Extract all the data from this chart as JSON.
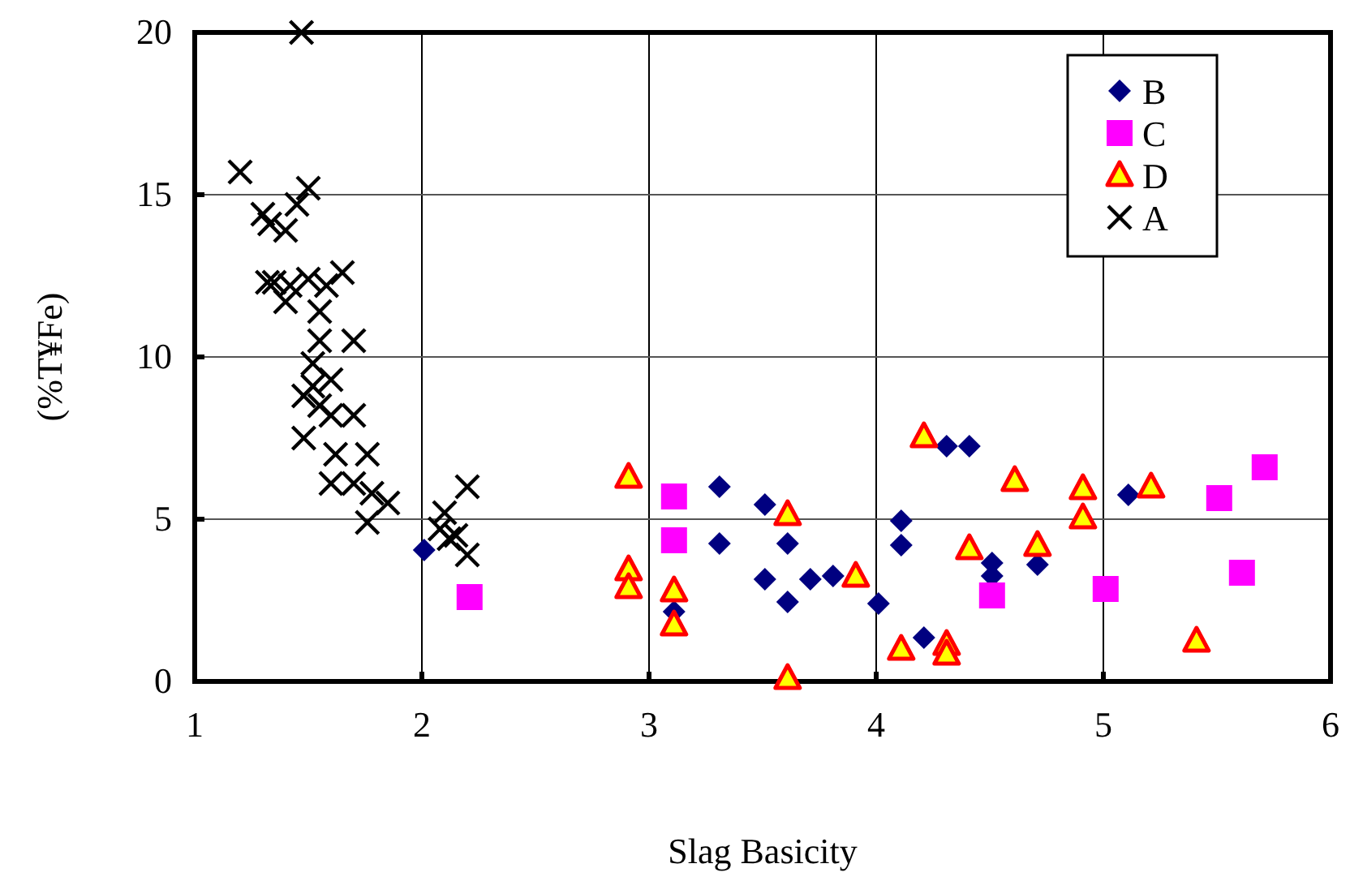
{
  "chart_data": {
    "type": "scatter",
    "xlabel": "Slag Basicity",
    "ylabel": "(%T¥Fe)",
    "xlim": [
      1,
      6
    ],
    "xticks": [
      1,
      2,
      3,
      4,
      5,
      6
    ],
    "ylim": [
      0,
      20
    ],
    "yticks": [
      0,
      5,
      10,
      15,
      20
    ],
    "grid": true,
    "legend": "top right",
    "series": [
      {
        "name": "B",
        "color": "#000080",
        "marker": "diamond",
        "x": [
          2.01,
          3.11,
          3.31,
          3.31,
          3.51,
          3.51,
          3.61,
          3.61,
          3.71,
          3.81,
          4.01,
          4.11,
          4.11,
          4.21,
          4.31,
          4.41,
          4.51,
          4.51,
          4.71,
          5.11
        ],
        "values": [
          4.05,
          2.15,
          6.0,
          4.25,
          5.45,
          3.15,
          4.25,
          2.45,
          3.15,
          3.25,
          2.4,
          4.95,
          4.2,
          1.35,
          7.25,
          7.25,
          3.65,
          3.25,
          3.6,
          5.75
        ]
      },
      {
        "name": "C",
        "color": "#ff00ff",
        "marker": "square",
        "x": [
          2.21,
          3.11,
          3.11,
          4.51,
          5.01,
          5.51,
          5.61,
          5.71
        ],
        "values": [
          2.6,
          5.7,
          4.35,
          2.65,
          2.85,
          5.65,
          3.35,
          6.6
        ]
      },
      {
        "name": "D",
        "color": "#ff0000",
        "marker": "triangle",
        "x": [
          2.91,
          2.91,
          2.91,
          3.11,
          3.11,
          3.61,
          3.61,
          3.91,
          4.11,
          4.21,
          4.31,
          4.31,
          4.41,
          4.61,
          4.71,
          4.91,
          4.91,
          5.21,
          5.41
        ],
        "values": [
          6.3,
          3.45,
          2.9,
          2.8,
          1.75,
          5.15,
          0.1,
          3.25,
          1.0,
          7.55,
          1.15,
          0.85,
          4.1,
          6.2,
          4.2,
          5.95,
          5.05,
          6.0,
          1.25
        ]
      },
      {
        "name": "A",
        "color": "#000000",
        "marker": "cross",
        "x": [
          1.2,
          1.47,
          1.3,
          1.33,
          1.4,
          1.45,
          1.5,
          1.32,
          1.35,
          1.42,
          1.5,
          1.58,
          1.65,
          1.4,
          1.55,
          1.55,
          1.7,
          1.52,
          1.48,
          1.52,
          1.6,
          1.55,
          1.6,
          1.7,
          1.48,
          1.62,
          1.76,
          1.6,
          1.7,
          1.78,
          1.85,
          1.76,
          2.2,
          2.1,
          2.12,
          2.15,
          2.2,
          2.08
        ],
        "values": [
          15.7,
          20,
          14.4,
          14.1,
          13.9,
          14.7,
          15.2,
          12.3,
          12.3,
          12.2,
          12.4,
          12.2,
          12.6,
          11.7,
          11.4,
          10.5,
          10.5,
          9.8,
          8.8,
          9.1,
          9.3,
          8.5,
          8.2,
          8.2,
          7.5,
          7.0,
          7.0,
          6.1,
          6.1,
          5.8,
          5.5,
          4.9,
          6.0,
          5.2,
          4.4,
          4.5,
          3.9,
          4.7
        ]
      }
    ]
  }
}
